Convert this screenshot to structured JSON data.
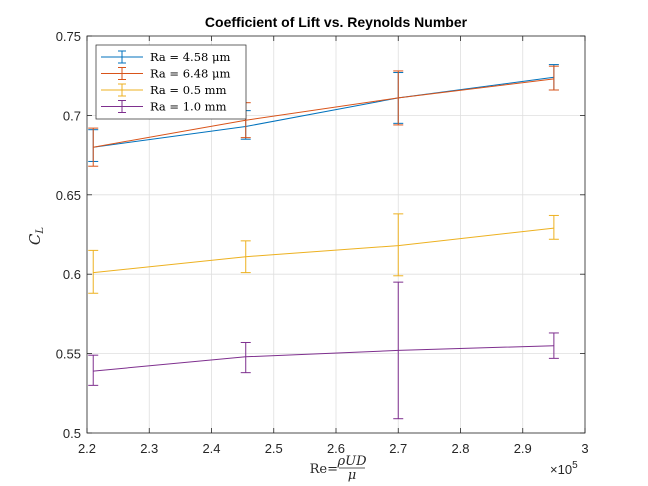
{
  "chart_data": {
    "type": "line",
    "title": "Coefficient of Lift vs. Reynolds Number",
    "ylabel": "C",
    "ylabel_sub": "L",
    "xlabel_prefix": "Re=",
    "xlabel_num": "ρUD",
    "xlabel_den": "μ",
    "x_multiplier_base": "×10",
    "x_multiplier_exp": "5",
    "xlim": [
      2.2,
      3.0
    ],
    "ylim": [
      0.5,
      0.75
    ],
    "xticks": [
      2.2,
      2.3,
      2.4,
      2.5,
      2.6,
      2.7,
      2.8,
      2.9,
      3.0
    ],
    "xtick_labels": [
      "2.2",
      "2.3",
      "2.4",
      "2.5",
      "2.6",
      "2.7",
      "2.8",
      "2.9",
      "3"
    ],
    "yticks": [
      0.5,
      0.55,
      0.6,
      0.65,
      0.7,
      0.75
    ],
    "ytick_labels": [
      "0.5",
      "0.55",
      "0.6",
      "0.65",
      "0.7",
      "0.75"
    ],
    "grid": true,
    "legend_position": "top-left",
    "x": [
      2.21,
      2.455,
      2.7,
      2.95
    ],
    "series": [
      {
        "name": "Ra = 4.58 μm",
        "color": "#0072bd",
        "values": [
          0.68,
          0.693,
          0.711,
          0.724
        ],
        "err_low": [
          0.671,
          0.685,
          0.695,
          0.716
        ],
        "err_high": [
          0.691,
          0.703,
          0.727,
          0.732
        ]
      },
      {
        "name": "Ra = 6.48 μm",
        "color": "#d95319",
        "values": [
          0.68,
          0.697,
          0.711,
          0.723
        ],
        "err_low": [
          0.668,
          0.686,
          0.694,
          0.716
        ],
        "err_high": [
          0.692,
          0.708,
          0.728,
          0.731
        ]
      },
      {
        "name": "Ra = 0.5 mm",
        "color": "#edb120",
        "values": [
          0.601,
          0.611,
          0.618,
          0.629
        ],
        "err_low": [
          0.588,
          0.601,
          0.599,
          0.622
        ],
        "err_high": [
          0.615,
          0.621,
          0.638,
          0.637
        ]
      },
      {
        "name": "Ra = 1.0 mm",
        "color": "#7e2f8e",
        "values": [
          0.539,
          0.548,
          0.552,
          0.555
        ],
        "err_low": [
          0.53,
          0.538,
          0.509,
          0.547
        ],
        "err_high": [
          0.549,
          0.557,
          0.595,
          0.563
        ]
      }
    ]
  }
}
